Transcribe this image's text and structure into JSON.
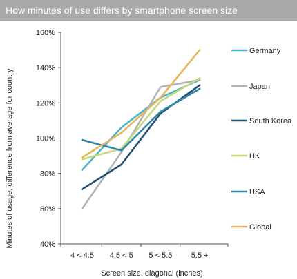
{
  "chart_data": {
    "type": "line",
    "title": "How minutes of use differs by smartphone screen size",
    "xlabel": "Screen size, diagonal (inches)",
    "ylabel": "Minutes of usage, difference from average for country",
    "categories": [
      "4 < 4.5",
      "4.5 < 5",
      "5 < 5.5",
      "5.5 +"
    ],
    "ylim": [
      40,
      160
    ],
    "yticks": [
      40,
      60,
      80,
      100,
      120,
      140,
      160
    ],
    "ytick_labels": [
      "40%",
      "60%",
      "80%",
      "100%",
      "120%",
      "140%",
      "160%"
    ],
    "grid": false,
    "legend_position": "right",
    "series": [
      {
        "name": "Germany",
        "color": "#4bb3c9",
        "values": [
          82,
          106,
          123,
          133
        ]
      },
      {
        "name": "Japan",
        "color": "#b3b3b3",
        "values": [
          60,
          92,
          129,
          133
        ]
      },
      {
        "name": "South Korea",
        "color": "#1f4e6e",
        "values": [
          71,
          85,
          114,
          130
        ]
      },
      {
        "name": "UK",
        "color": "#c5d97a",
        "values": [
          88,
          94,
          121,
          134
        ]
      },
      {
        "name": "USA",
        "color": "#2e86ab",
        "values": [
          99,
          93,
          115,
          128
        ]
      },
      {
        "name": "Global",
        "color": "#e6b45c",
        "values": [
          89,
          103,
          123,
          150
        ]
      }
    ]
  }
}
